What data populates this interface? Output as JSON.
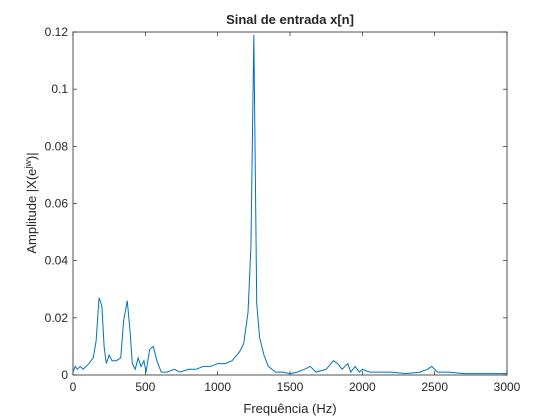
{
  "chart_data": {
    "type": "line",
    "title": "Sinal de entrada x[n]",
    "xlabel": "Frequência (Hz)",
    "ylabel": {
      "base": "Amplitude |X(e",
      "sup": "jw",
      "end": ")|"
    },
    "x": [
      0,
      15,
      30,
      50,
      70,
      90,
      110,
      140,
      160,
      180,
      200,
      215,
      230,
      250,
      270,
      300,
      330,
      350,
      375,
      395,
      410,
      430,
      450,
      470,
      490,
      505,
      530,
      555,
      580,
      610,
      650,
      700,
      740,
      800,
      850,
      900,
      950,
      1000,
      1050,
      1100,
      1150,
      1180,
      1210,
      1230,
      1250,
      1270,
      1290,
      1320,
      1350,
      1400,
      1450,
      1500,
      1550,
      1600,
      1640,
      1680,
      1750,
      1800,
      1830,
      1860,
      1900,
      1920,
      1950,
      1980,
      2000,
      2050,
      2100,
      2200,
      2300,
      2400,
      2450,
      2480,
      2500,
      2520,
      2600,
      2700,
      2800,
      2900,
      3000
    ],
    "series": [
      {
        "color": "#0072bd",
        "values": [
          0.001,
          0.003,
          0.002,
          0.003,
          0.002,
          0.003,
          0.004,
          0.006,
          0.012,
          0.027,
          0.024,
          0.01,
          0.004,
          0.007,
          0.005,
          0.005,
          0.006,
          0.019,
          0.026,
          0.015,
          0.004,
          0.002,
          0.006,
          0.003,
          0.005,
          0.001,
          0.009,
          0.01,
          0.005,
          0.001,
          0.001,
          0.002,
          0.001,
          0.002,
          0.002,
          0.003,
          0.003,
          0.004,
          0.004,
          0.005,
          0.008,
          0.011,
          0.022,
          0.045,
          0.119,
          0.025,
          0.013,
          0.007,
          0.003,
          0.001,
          0.001,
          0.0005,
          0.001,
          0.002,
          0.003,
          0.001,
          0.002,
          0.005,
          0.004,
          0.002,
          0.004,
          0.001,
          0.003,
          0.001,
          0.002,
          0.001,
          0.001,
          0.001,
          0.0005,
          0.001,
          0.002,
          0.003,
          0.002,
          0.001,
          0.001,
          0.0005,
          0.0005,
          0.0005,
          0.0005
        ]
      }
    ],
    "xlim": [
      0,
      3000
    ],
    "xticks": [
      0,
      500,
      1000,
      1500,
      2000,
      2500,
      3000
    ],
    "ylim": [
      0,
      0.12
    ],
    "yticks": [
      0,
      0.02,
      0.04,
      0.06,
      0.08,
      0.1,
      0.12
    ]
  }
}
